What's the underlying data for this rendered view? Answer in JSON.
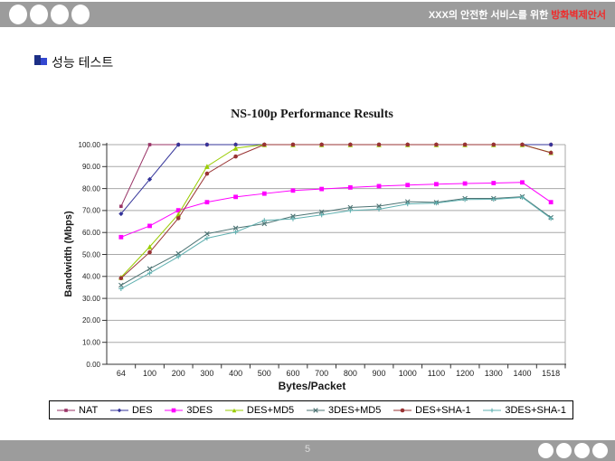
{
  "header": {
    "title_plain": "XXX의 안전한 서비스를 위한 ",
    "title_red": "방화벽제안서"
  },
  "slide": {
    "title": "성능 테스트"
  },
  "footer": {
    "page_number": "5"
  },
  "chart_data": {
    "type": "line",
    "title": "NS-100p Performance Results",
    "xlabel": "Bytes/Packet",
    "ylabel": "Bandwidth (Mbps)",
    "ylim": [
      0,
      100
    ],
    "ytick_step": 10,
    "grid": true,
    "legend_position": "bottom",
    "categories": [
      "64",
      "100",
      "200",
      "300",
      "400",
      "500",
      "600",
      "700",
      "800",
      "900",
      "1000",
      "1100",
      "1200",
      "1300",
      "1400",
      "1518"
    ],
    "series": [
      {
        "name": "NAT",
        "color": "#993366",
        "marker": "square",
        "msize": 1.8,
        "values": [
          71.9,
          100,
          100,
          100,
          100,
          100,
          100,
          100,
          100,
          100,
          100,
          100,
          100,
          100,
          100,
          100
        ]
      },
      {
        "name": "DES",
        "color": "#333399",
        "marker": "diamond",
        "msize": 2.6,
        "values": [
          68.5,
          84.2,
          100,
          100,
          100,
          100,
          100,
          100,
          100,
          100,
          100,
          100,
          100,
          100,
          100,
          100
        ]
      },
      {
        "name": "3DES",
        "color": "#FF00FF",
        "marker": "square",
        "msize": 2.4,
        "values": [
          57.9,
          63,
          70.1,
          73.8,
          76.2,
          77.7,
          79.1,
          79.8,
          80.5,
          81.1,
          81.6,
          82,
          82.3,
          82.5,
          82.8,
          73.8
        ]
      },
      {
        "name": "DES+MD5",
        "color": "#99CC00",
        "marker": "triangle",
        "msize": 2.8,
        "values": [
          39.6,
          53.5,
          68.3,
          90.1,
          98.4,
          100,
          100,
          100,
          100,
          100,
          100,
          100,
          100,
          100,
          100,
          96.4
        ]
      },
      {
        "name": "3DES+MD5",
        "color": "#4D7373",
        "marker": "x",
        "msize": 2.4,
        "values": [
          36,
          43.5,
          50.4,
          59.4,
          62,
          64,
          67.4,
          69.3,
          71.4,
          72,
          74,
          73.7,
          75.5,
          75.5,
          76.3,
          66.8
        ]
      },
      {
        "name": "DES+SHA-1",
        "color": "#993333",
        "marker": "circle",
        "msize": 2.3,
        "values": [
          39.2,
          51,
          66.5,
          86.8,
          94.6,
          100,
          100,
          100,
          100,
          100,
          100,
          100,
          100,
          100,
          100,
          96.3
        ]
      },
      {
        "name": "3DES+SHA-1",
        "color": "#5FB0B0",
        "marker": "plus",
        "msize": 2.6,
        "values": [
          34.4,
          41.5,
          49,
          57.4,
          60.2,
          65.5,
          66.2,
          68,
          70,
          70.6,
          73,
          73.4,
          75,
          75.1,
          76,
          66.4
        ]
      }
    ]
  }
}
